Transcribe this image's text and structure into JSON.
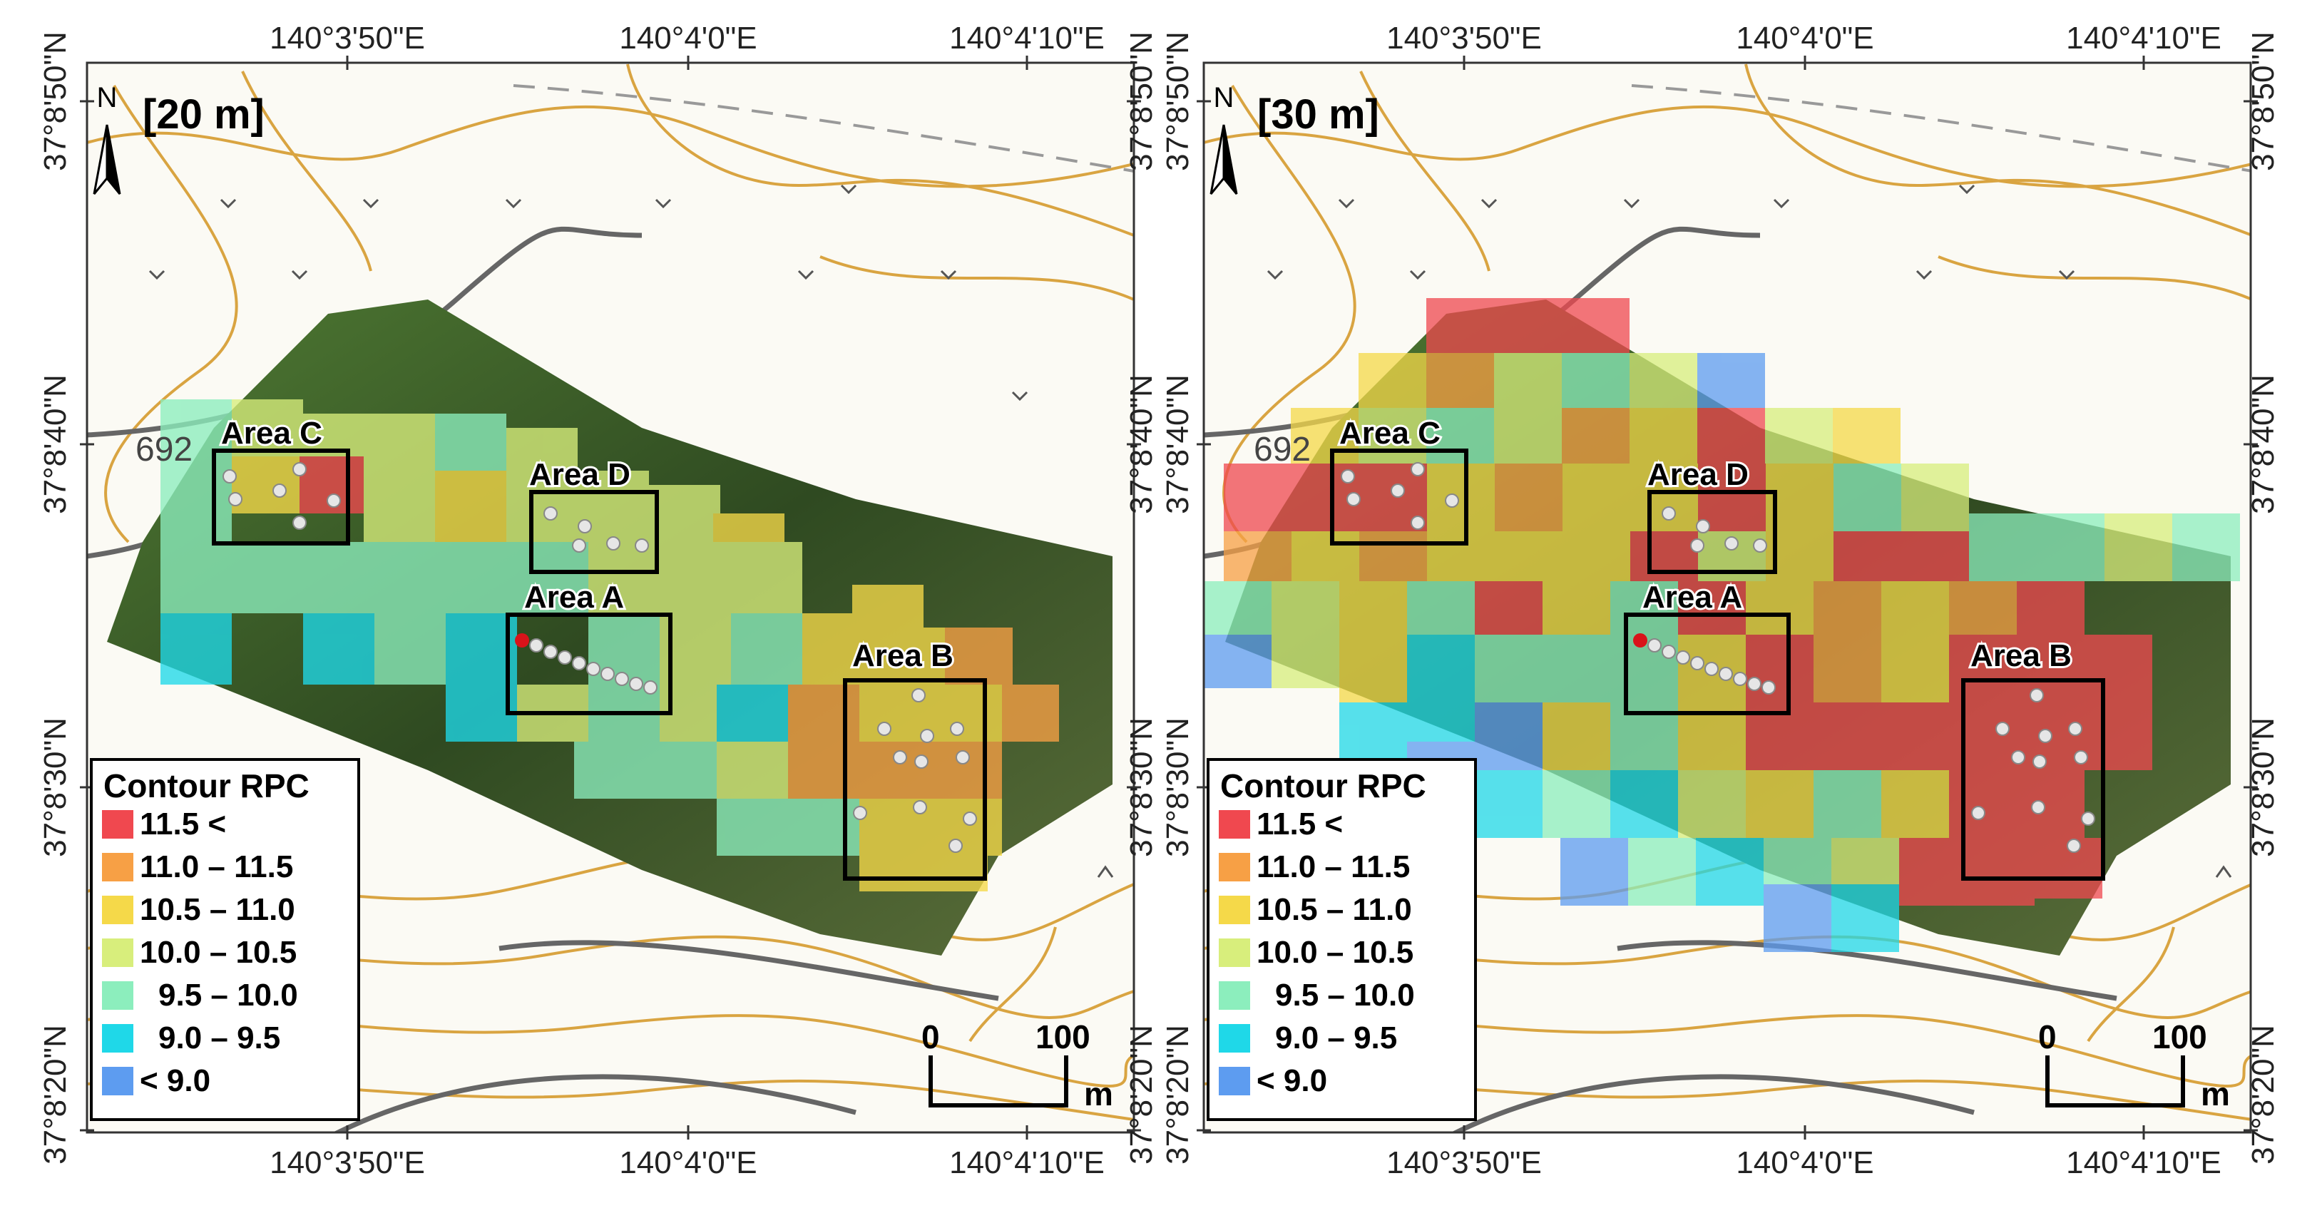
{
  "panels": [
    {
      "title": "[20 m]",
      "top_ticks": [
        "140°3'50\"E",
        "140°4'0\"E",
        "140°4'10\"E"
      ],
      "bottom_ticks": [
        "140°3'50\"E",
        "140°4'0\"E",
        "140°4'10\"E"
      ],
      "side_ticks": [
        "37°8'50\"N",
        "37°8'40\"N",
        "37°8'30\"N",
        "37°8'20\"N"
      ],
      "contour_label": "692",
      "areas": [
        {
          "id": "C",
          "label": "Area C"
        },
        {
          "id": "D",
          "label": "Area D"
        },
        {
          "id": "A",
          "label": "Area A"
        },
        {
          "id": "B",
          "label": "Area B"
        }
      ],
      "legend": {
        "title": "Contour RPC",
        "classes": [
          {
            "label": "11.5 <",
            "color": "#f0484f"
          },
          {
            "label": "11.0 – 11.5",
            "color": "#f7a045"
          },
          {
            "label": "10.5 – 11.0",
            "color": "#f5d949"
          },
          {
            "label": "10.0 – 10.5",
            "color": "#d8ee7c"
          },
          {
            "label": "9.5 – 10.0",
            "color": "#8ceebd"
          },
          {
            "label": "9.0 – 9.5",
            "color": "#1fd8e8"
          },
          {
            "label": "< 9.0",
            "color": "#5d9cf0"
          }
        ]
      },
      "scale": {
        "start": "0",
        "end": "100",
        "unit": "m"
      },
      "north": "N"
    },
    {
      "title": "[30 m]",
      "top_ticks": [
        "140°3'50\"E",
        "140°4'0\"E",
        "140°4'10\"E"
      ],
      "bottom_ticks": [
        "140°3'50\"E",
        "140°4'0\"E",
        "140°4'10\"E"
      ],
      "side_ticks": [
        "37°8'50\"N",
        "37°8'40\"N",
        "37°8'30\"N",
        "37°8'20\"N"
      ],
      "contour_label": "692",
      "areas": [
        {
          "id": "C",
          "label": "Area C"
        },
        {
          "id": "D",
          "label": "Area D"
        },
        {
          "id": "A",
          "label": "Area A"
        },
        {
          "id": "B",
          "label": "Area B"
        }
      ],
      "legend": {
        "title": "Contour RPC",
        "classes": [
          {
            "label": "11.5 <",
            "color": "#f0484f"
          },
          {
            "label": "11.0 – 11.5",
            "color": "#f7a045"
          },
          {
            "label": "10.5 – 11.0",
            "color": "#f5d949"
          },
          {
            "label": "10.0 – 10.5",
            "color": "#d8ee7c"
          },
          {
            "label": "9.5 – 10.0",
            "color": "#8ceebd"
          },
          {
            "label": "9.0 – 9.5",
            "color": "#1fd8e8"
          },
          {
            "label": "< 9.0",
            "color": "#5d9cf0"
          }
        ]
      },
      "scale": {
        "start": "0",
        "end": "100",
        "unit": "m"
      },
      "north": "N"
    }
  ],
  "colors": {
    "contour": "#d9a441",
    "road": "#666666",
    "area_box": "#000000",
    "sample_point": "#e6e6e6",
    "start_point": "#d9131a",
    "vegetation": "#3d5a26"
  }
}
